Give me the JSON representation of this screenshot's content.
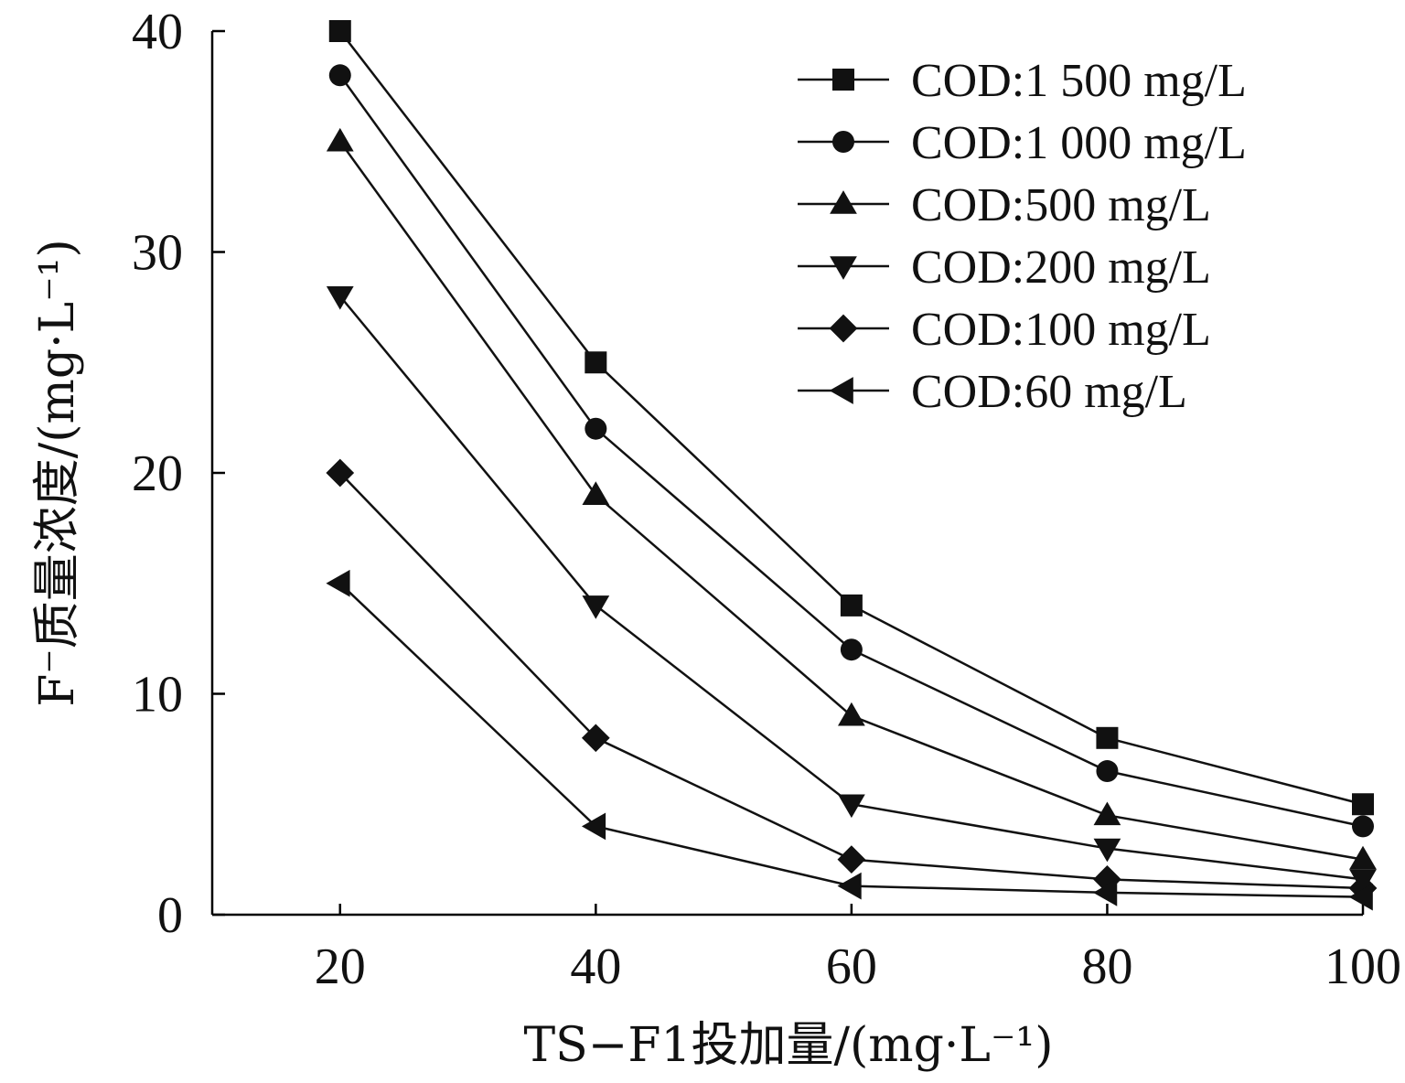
{
  "chart_data": {
    "type": "line",
    "x": [
      20,
      40,
      60,
      80,
      100
    ],
    "xlim": [
      10,
      100
    ],
    "ylim": [
      0,
      40
    ],
    "xticks": [
      "20",
      "40",
      "60",
      "80",
      "100"
    ],
    "yticks": [
      "0",
      "10",
      "20",
      "30",
      "40"
    ],
    "xlabel": "TS−F1投加量/(mg·L⁻¹)",
    "ylabel": "F⁻质量浓度/(mg·L⁻¹)",
    "legend_position": "top-right",
    "grid": false,
    "series": [
      {
        "name": "COD:1 500 mg/L",
        "marker": "square",
        "values": [
          40,
          25,
          14,
          8,
          5
        ]
      },
      {
        "name": "COD:1 000 mg/L",
        "marker": "circle",
        "values": [
          38,
          22,
          12,
          6.5,
          4
        ]
      },
      {
        "name": "COD:500 mg/L",
        "marker": "triangle-up",
        "values": [
          35,
          19,
          9,
          4.5,
          2.5
        ]
      },
      {
        "name": "COD:200 mg/L",
        "marker": "triangle-down",
        "values": [
          28,
          14,
          5,
          3,
          1.6
        ]
      },
      {
        "name": "COD:100 mg/L",
        "marker": "diamond",
        "values": [
          20,
          8,
          2.5,
          1.6,
          1.2
        ]
      },
      {
        "name": "COD:60 mg/L",
        "marker": "triangle-left",
        "values": [
          15,
          4,
          1.3,
          1,
          0.8
        ]
      }
    ]
  }
}
